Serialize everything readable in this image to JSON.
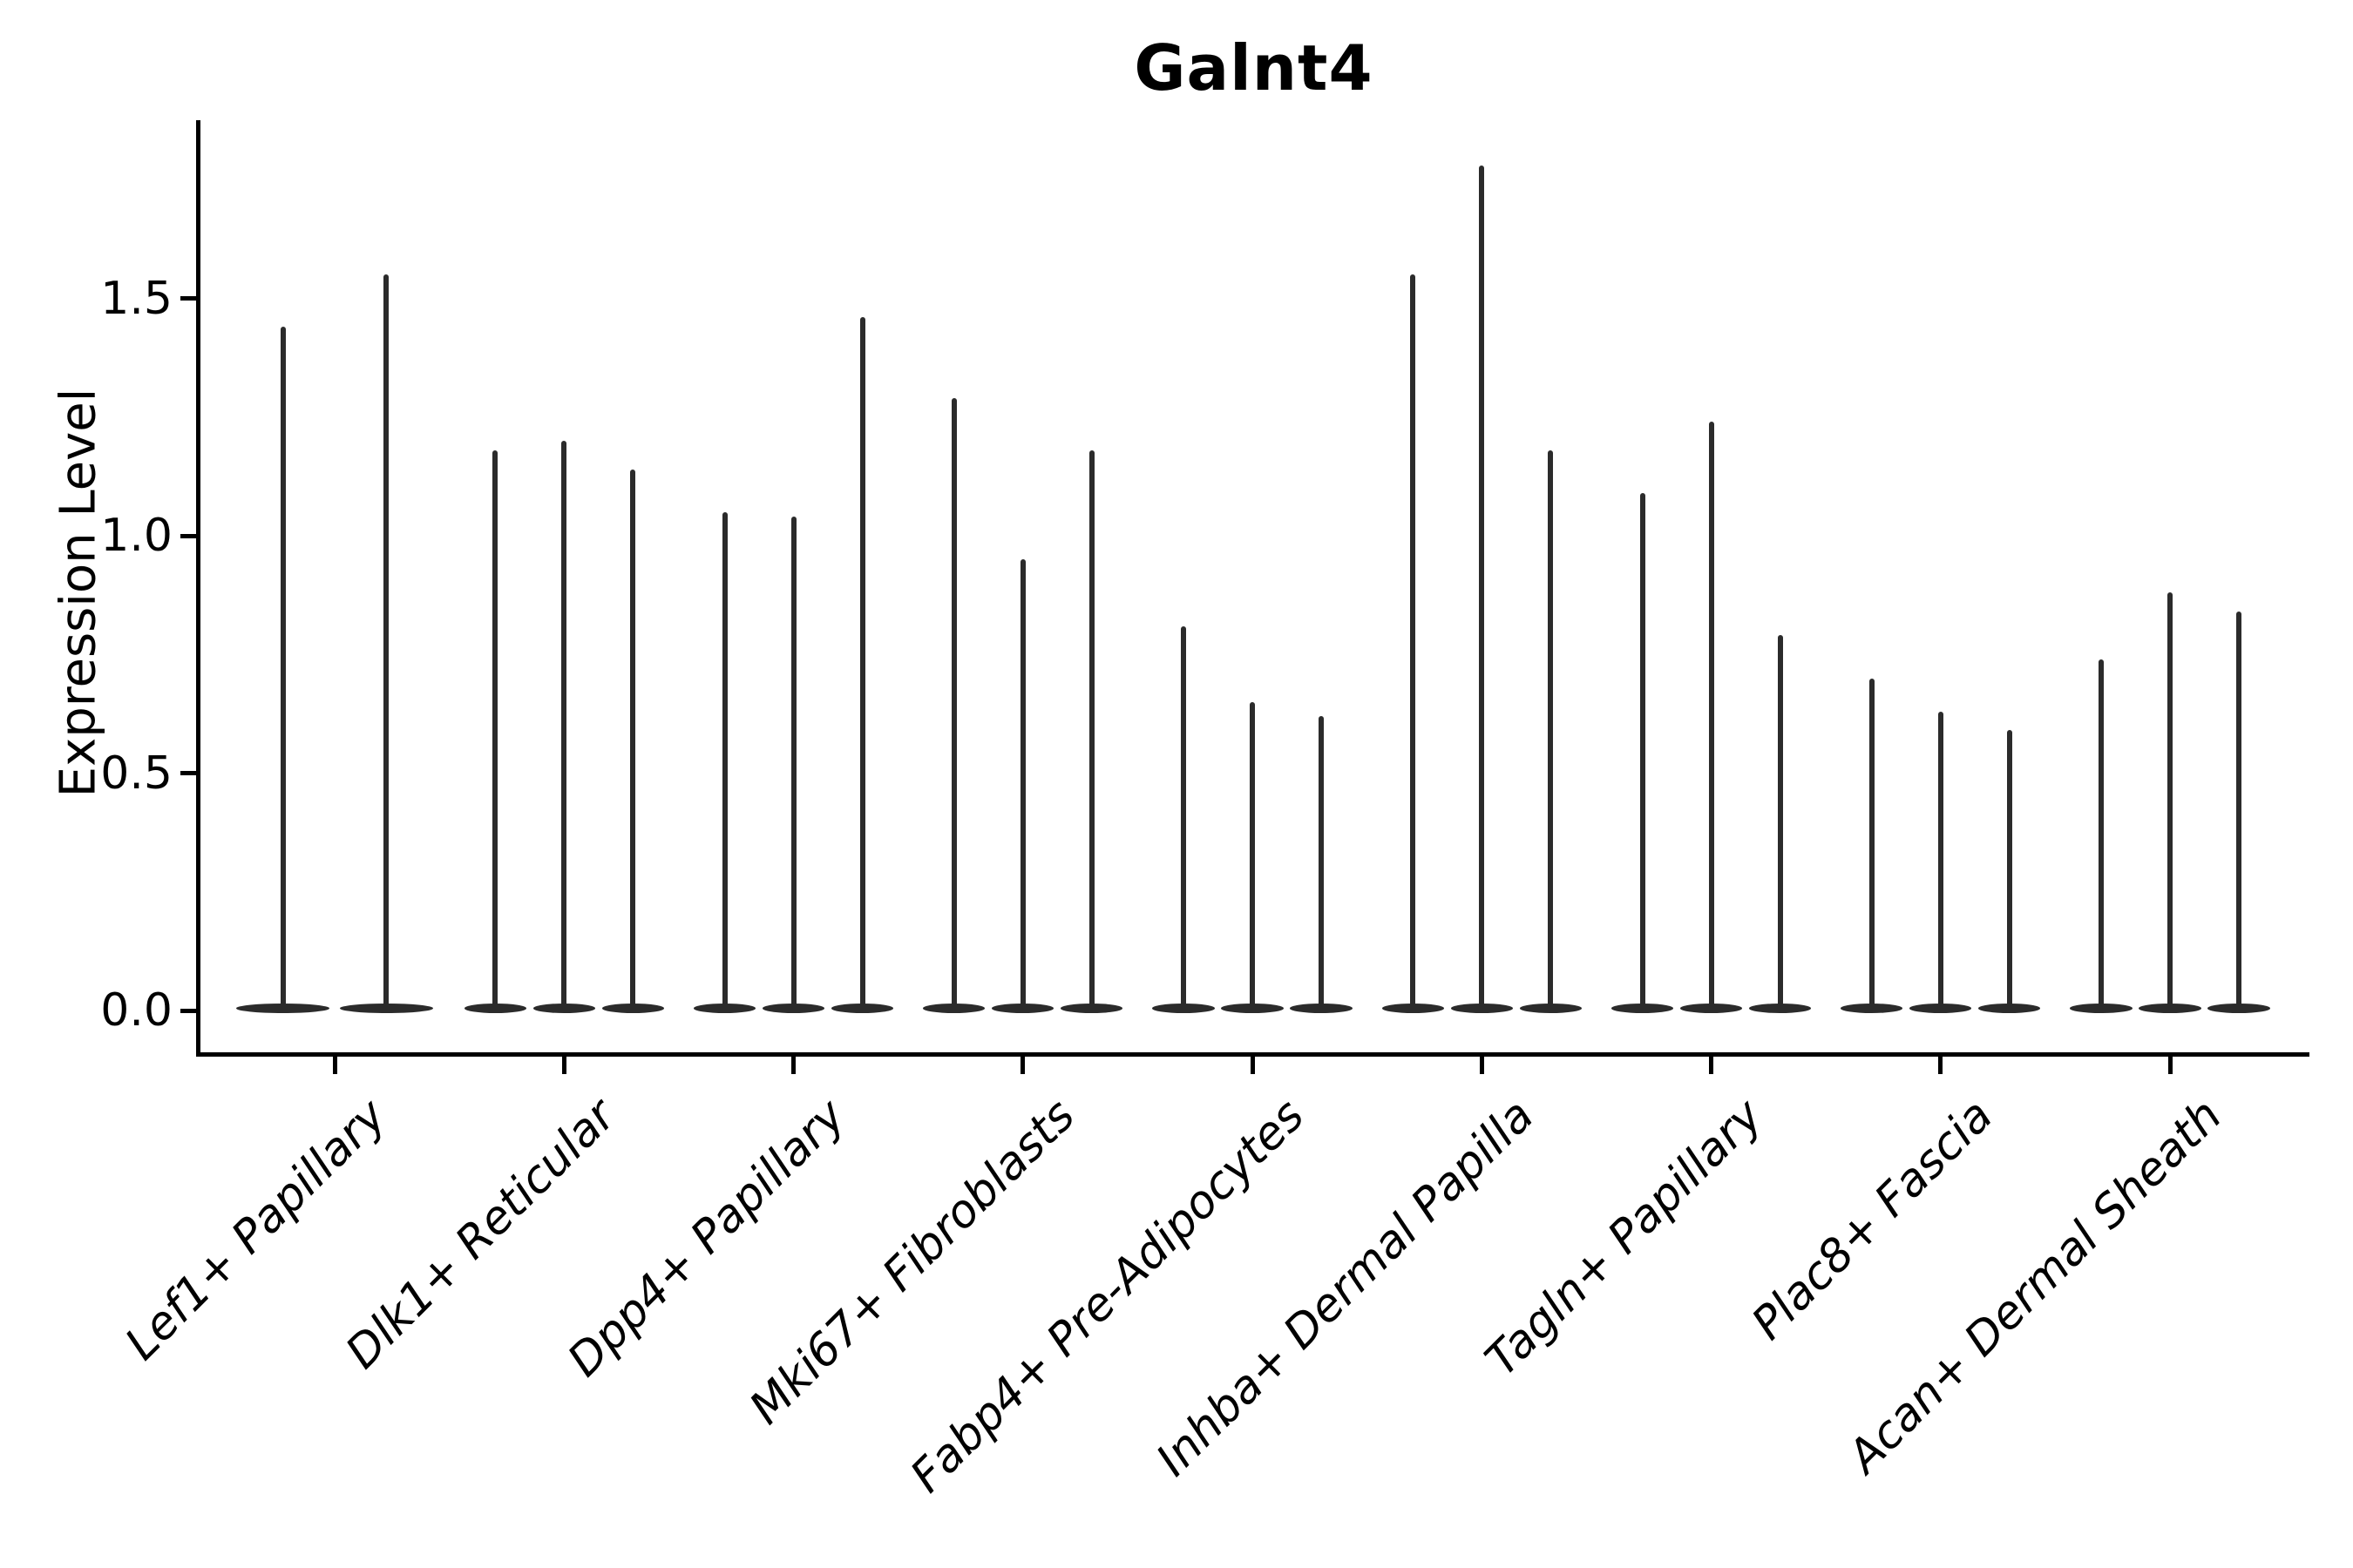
{
  "figure": {
    "title": "Galnt4",
    "ylabel": "Expression Level"
  },
  "chart_data": {
    "type": "violin",
    "title": "Galnt4",
    "xlabel": "",
    "ylabel": "Expression Level",
    "ytick_labels": [
      "0.0",
      "0.5",
      "1.0",
      "1.5"
    ],
    "ytick_values": [
      0.0,
      0.5,
      1.0,
      1.5
    ],
    "ylim": [
      -0.09,
      1.87
    ],
    "grid": false,
    "legend_position": "none",
    "color": "#2b2b2b",
    "style_note": "Violins are collapsed at zero expression (flat lens-shaped body on the baseline) with a single narrow tail rising to the maximum expression value; only left and bottom spines shown; x tick labels italic and rotated 45 degrees.",
    "categories": [
      "Lef1+ Papillary",
      "Dlk1+ Reticular",
      "Dpp4+ Papillary",
      "Mki67+ Fibroblasts",
      "Fabp4+ Pre-Adipocytes",
      "Inhba+ Dermal Papilla",
      "Tagln+ Papillary",
      "Plac8+ Fascia",
      "Acan+ Dermal Sheath"
    ],
    "groups": [
      {
        "category": "Lef1+ Papillary",
        "baseline_value": 0,
        "violin_maxima": [
          1.44,
          1.55
        ]
      },
      {
        "category": "Dlk1+ Reticular",
        "baseline_value": 0,
        "violin_maxima": [
          1.18,
          1.2,
          1.14
        ]
      },
      {
        "category": "Dpp4+ Papillary",
        "baseline_value": 0,
        "violin_maxima": [
          1.05,
          1.04,
          1.46
        ]
      },
      {
        "category": "Mki67+ Fibroblasts",
        "baseline_value": 0,
        "violin_maxima": [
          1.29,
          0.95,
          1.18
        ]
      },
      {
        "category": "Fabp4+ Pre-Adipocytes",
        "baseline_value": 0,
        "violin_maxima": [
          0.81,
          0.65,
          0.62
        ]
      },
      {
        "category": "Inhba+ Dermal Papilla",
        "baseline_value": 0,
        "violin_maxima": [
          1.55,
          1.78,
          1.18
        ]
      },
      {
        "category": "Tagln+ Papillary",
        "baseline_value": 0,
        "violin_maxima": [
          1.09,
          1.24,
          0.79
        ]
      },
      {
        "category": "Plac8+ Fascia",
        "baseline_value": 0,
        "violin_maxima": [
          0.7,
          0.63,
          0.59
        ]
      },
      {
        "category": "Acan+ Dermal Sheath",
        "baseline_value": 0,
        "violin_maxima": [
          0.74,
          0.88,
          0.84
        ]
      }
    ]
  }
}
